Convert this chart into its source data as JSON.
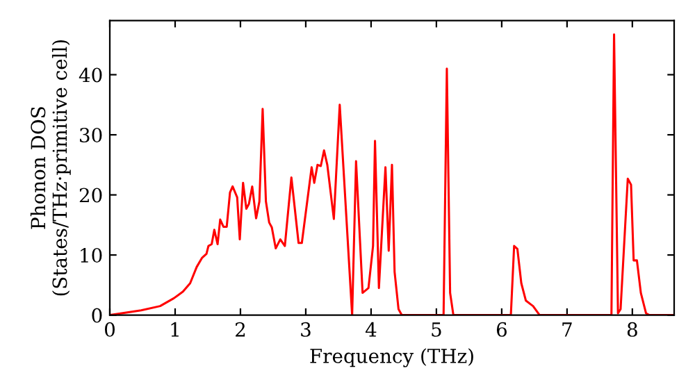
{
  "chart_data": {
    "type": "line",
    "xlabel": "Frequency (THz)",
    "ylabel": "Phonon DOS\n(States/THz·primitive cell)",
    "x": [
      0,
      0.48,
      0.77,
      0.98,
      1.12,
      1.23,
      1.33,
      1.41,
      1.48,
      1.51,
      1.56,
      1.6,
      1.65,
      1.69,
      1.74,
      1.79,
      1.84,
      1.88,
      1.95,
      1.99,
      2.04,
      2.09,
      2.13,
      2.18,
      2.24,
      2.29,
      2.34,
      2.39,
      2.44,
      2.48,
      2.54,
      2.61,
      2.68,
      2.72,
      2.78,
      2.89,
      2.94,
      3.09,
      3.13,
      3.18,
      3.23,
      3.28,
      3.33,
      3.43,
      3.52,
      3.71,
      3.77,
      3.87,
      3.96,
      4.03,
      4.06,
      4.12,
      4.22,
      4.27,
      4.32,
      4.36,
      4.42,
      4.47,
      5.11,
      5.16,
      5.21,
      5.26,
      6.14,
      6.19,
      6.24,
      6.3,
      6.37,
      6.48,
      6.58,
      7.68,
      7.72,
      7.78,
      7.82,
      7.93,
      7.98,
      8.02,
      8.07,
      8.13,
      8.21,
      8.26,
      8.64
    ],
    "series": [
      {
        "color": "#ff0000",
        "values": [
          0,
          0.8,
          1.5,
          2.8,
          3.9,
          5.3,
          8,
          9.5,
          10.2,
          11.5,
          11.8,
          14.2,
          11.8,
          15.9,
          14.7,
          14.7,
          20.4,
          21.4,
          19.6,
          12.6,
          22,
          17.7,
          18.5,
          21.4,
          16.1,
          18.9,
          34.3,
          18.9,
          15.4,
          14.6,
          11.1,
          12.6,
          11.5,
          16.1,
          22.9,
          12,
          12,
          24.6,
          22,
          25,
          24.8,
          27.4,
          25,
          16,
          35,
          0,
          25.6,
          3.7,
          4.5,
          11.5,
          29,
          4.5,
          24.6,
          10.7,
          25,
          7.2,
          1,
          0,
          0,
          41,
          3.7,
          0,
          0,
          11.5,
          11,
          5.3,
          2.4,
          1.5,
          0,
          0,
          46.7,
          0.3,
          1,
          22.7,
          21.7,
          9.1,
          9.1,
          3.7,
          0.3,
          0,
          0
        ]
      }
    ],
    "xlim": [
      0,
      8.64
    ],
    "ylim": [
      0,
      49
    ],
    "xticks": [
      0,
      1,
      2,
      3,
      4,
      5,
      6,
      7,
      8
    ],
    "yticks": [
      0,
      10,
      20,
      30,
      40
    ],
    "grid": false,
    "legend": false,
    "marker": "none",
    "line_style": "solid"
  }
}
